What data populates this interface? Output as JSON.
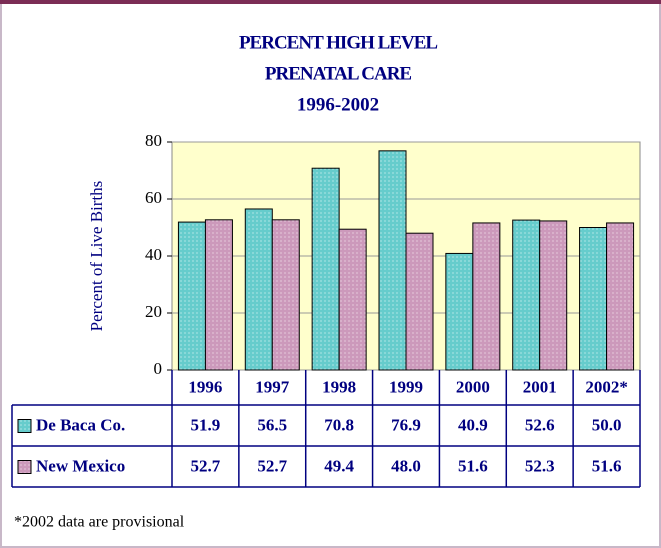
{
  "chart_data": {
    "type": "bar",
    "title": [
      "PERCENT HIGH LEVEL",
      "PRENATAL CARE",
      "1996-2002"
    ],
    "y_label": "Percent of Live Births",
    "categories": [
      "1996",
      "1997",
      "1998",
      "1999",
      "2000",
      "2001",
      "2002*"
    ],
    "series": [
      {
        "name": "De Baca Co.",
        "color": "#66cccc",
        "values": [
          51.9,
          56.5,
          70.8,
          76.9,
          40.9,
          52.6,
          50
        ],
        "value_labels": [
          "51.9",
          "56.5",
          "70.8",
          "76.9",
          "40.9",
          "52.6",
          "50.0"
        ]
      },
      {
        "name": "New Mexico",
        "color": "#cc99bb",
        "values": [
          52.7,
          52.7,
          49.4,
          48,
          51.6,
          52.3,
          51.6
        ],
        "value_labels": [
          "52.7",
          "52.7",
          "49.4",
          "48.0",
          "51.6",
          "52.3",
          "51.6"
        ]
      }
    ],
    "ylim": [
      0,
      80
    ],
    "yticks": [
      0,
      20,
      40,
      60,
      80
    ],
    "grid": true,
    "footnote": "*2002 data are provisional"
  }
}
